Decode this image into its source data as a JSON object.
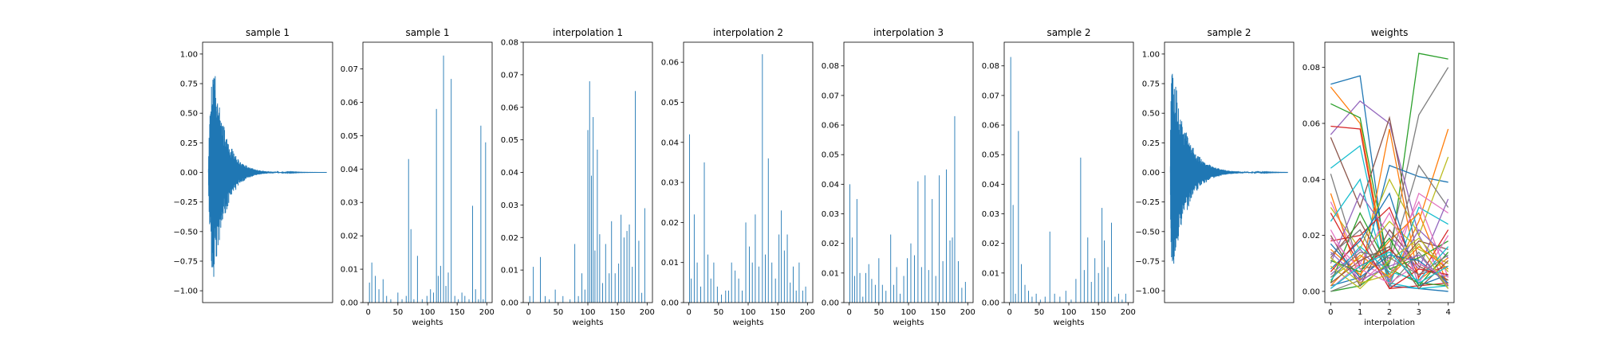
{
  "chart_data": [
    {
      "type": "line",
      "title": "sample 1",
      "xlabel": "",
      "ylabel": "",
      "ylim": [
        -1.1,
        1.1
      ],
      "x_ticks": [],
      "y_ticks": [
        -1.0,
        -0.75,
        -0.5,
        -0.25,
        0.0,
        0.25,
        0.5,
        0.75,
        1.0
      ],
      "y_tick_labels": [
        "−1.00",
        "−0.75",
        "−0.50",
        "−0.25",
        "0.00",
        "0.25",
        "0.50",
        "0.75",
        "1.00"
      ],
      "waveform": {
        "peak": 1.0,
        "onset": 0.04,
        "decay": 0.1,
        "end": 1.0
      },
      "color": "#1f77b4"
    },
    {
      "type": "bar",
      "title": "sample 1",
      "xlabel": "weights",
      "ylabel": "",
      "xlim": [
        -9,
        209
      ],
      "ylim": [
        0,
        0.078
      ],
      "x_ticks": [
        0,
        50,
        100,
        150,
        200
      ],
      "y_ticks": [
        0.0,
        0.01,
        0.02,
        0.03,
        0.04,
        0.05,
        0.06,
        0.07
      ],
      "y_tick_labels": [
        "0.00",
        "0.01",
        "0.02",
        "0.03",
        "0.04",
        "0.05",
        "0.06",
        "0.07"
      ],
      "x": [
        2,
        6,
        12,
        18,
        25,
        31,
        38,
        50,
        57,
        64,
        68,
        72,
        77,
        83,
        91,
        99,
        105,
        110,
        115,
        118,
        122,
        127,
        131,
        135,
        140,
        146,
        152,
        158,
        163,
        170,
        176,
        181,
        186,
        190,
        194,
        198
      ],
      "values": [
        0.006,
        0.012,
        0.008,
        0.004,
        0.007,
        0.002,
        0.001,
        0.003,
        0.001,
        0.002,
        0.043,
        0.022,
        0.001,
        0.014,
        0.001,
        0.002,
        0.004,
        0.003,
        0.058,
        0.008,
        0.011,
        0.074,
        0.005,
        0.009,
        0.067,
        0.002,
        0.001,
        0.003,
        0.002,
        0.001,
        0.029,
        0.004,
        0.001,
        0.053,
        0.001,
        0.048
      ],
      "color": "#1f77b4"
    },
    {
      "type": "bar",
      "title": "interpolation 1",
      "xlabel": "weights",
      "ylabel": "",
      "xlim": [
        -9,
        209
      ],
      "ylim": [
        0,
        0.08
      ],
      "x_ticks": [
        0,
        50,
        100,
        150,
        200
      ],
      "y_ticks": [
        0.0,
        0.01,
        0.02,
        0.03,
        0.04,
        0.05,
        0.06,
        0.07,
        0.08
      ],
      "y_tick_labels": [
        "0.00",
        "0.01",
        "0.02",
        "0.03",
        "0.04",
        "0.05",
        "0.06",
        "0.07",
        "0.08"
      ],
      "x": [
        2,
        8,
        20,
        28,
        35,
        45,
        58,
        70,
        78,
        84,
        90,
        95,
        100,
        103,
        106,
        109,
        112,
        116,
        120,
        125,
        130,
        136,
        140,
        146,
        152,
        156,
        161,
        166,
        170,
        175,
        180,
        186,
        191,
        196
      ],
      "values": [
        0.002,
        0.011,
        0.014,
        0.002,
        0.001,
        0.004,
        0.002,
        0.001,
        0.018,
        0.002,
        0.009,
        0.004,
        0.053,
        0.068,
        0.039,
        0.057,
        0.016,
        0.047,
        0.021,
        0.006,
        0.018,
        0.009,
        0.025,
        0.009,
        0.012,
        0.027,
        0.02,
        0.022,
        0.024,
        0.011,
        0.065,
        0.019,
        0.003,
        0.029
      ],
      "color": "#1f77b4"
    },
    {
      "type": "bar",
      "title": "interpolation 2",
      "xlabel": "weights",
      "ylabel": "",
      "xlim": [
        -9,
        209
      ],
      "ylim": [
        0,
        0.065
      ],
      "x_ticks": [
        0,
        50,
        100,
        150,
        200
      ],
      "y_ticks": [
        0.0,
        0.01,
        0.02,
        0.03,
        0.04,
        0.05,
        0.06
      ],
      "y_tick_labels": [
        "0.00",
        "0.01",
        "0.02",
        "0.03",
        "0.04",
        "0.05",
        "0.06"
      ],
      "x": [
        1,
        4,
        9,
        14,
        20,
        26,
        32,
        37,
        42,
        48,
        55,
        62,
        67,
        72,
        78,
        84,
        90,
        96,
        102,
        107,
        112,
        118,
        124,
        129,
        134,
        140,
        146,
        152,
        156,
        161,
        166,
        171,
        176,
        181,
        186,
        192,
        197
      ],
      "values": [
        0.042,
        0.006,
        0.022,
        0.01,
        0.004,
        0.035,
        0.012,
        0.006,
        0.01,
        0.004,
        0.002,
        0.003,
        0.003,
        0.01,
        0.008,
        0.006,
        0.003,
        0.02,
        0.014,
        0.01,
        0.022,
        0.009,
        0.062,
        0.012,
        0.036,
        0.01,
        0.006,
        0.017,
        0.023,
        0.013,
        0.017,
        0.005,
        0.009,
        0.003,
        0.01,
        0.003,
        0.004
      ],
      "color": "#1f77b4"
    },
    {
      "type": "bar",
      "title": "interpolation 3",
      "xlabel": "weights",
      "ylabel": "",
      "xlim": [
        -9,
        209
      ],
      "ylim": [
        0,
        0.088
      ],
      "x_ticks": [
        0,
        50,
        100,
        150,
        200
      ],
      "y_ticks": [
        0.0,
        0.01,
        0.02,
        0.03,
        0.04,
        0.05,
        0.06,
        0.07,
        0.08
      ],
      "y_tick_labels": [
        "0.00",
        "0.01",
        "0.02",
        "0.03",
        "0.04",
        "0.05",
        "0.06",
        "0.07",
        "0.08"
      ],
      "x": [
        1,
        5,
        9,
        13,
        18,
        23,
        28,
        33,
        38,
        44,
        50,
        56,
        62,
        70,
        75,
        80,
        86,
        92,
        98,
        104,
        110,
        116,
        122,
        128,
        134,
        140,
        146,
        152,
        158,
        164,
        170,
        174,
        178,
        184,
        190,
        196
      ],
      "values": [
        0.04,
        0.022,
        0.009,
        0.035,
        0.01,
        0.002,
        0.01,
        0.013,
        0.008,
        0.006,
        0.015,
        0.006,
        0.004,
        0.023,
        0.006,
        0.012,
        0.003,
        0.009,
        0.015,
        0.02,
        0.016,
        0.041,
        0.012,
        0.043,
        0.011,
        0.035,
        0.009,
        0.043,
        0.014,
        0.045,
        0.021,
        0.022,
        0.063,
        0.014,
        0.005,
        0.007
      ],
      "color": "#1f77b4"
    },
    {
      "type": "bar",
      "title": "sample 2",
      "xlabel": "weights",
      "ylabel": "",
      "xlim": [
        -9,
        209
      ],
      "ylim": [
        0,
        0.088
      ],
      "x_ticks": [
        0,
        50,
        100,
        150,
        200
      ],
      "y_ticks": [
        0.0,
        0.01,
        0.02,
        0.03,
        0.04,
        0.05,
        0.06,
        0.07,
        0.08
      ],
      "y_tick_labels": [
        "0.00",
        "0.01",
        "0.02",
        "0.03",
        "0.04",
        "0.05",
        "0.06",
        "0.07",
        "0.08"
      ],
      "x": [
        2,
        6,
        10,
        15,
        20,
        26,
        32,
        38,
        45,
        52,
        60,
        68,
        76,
        85,
        95,
        104,
        112,
        120,
        126,
        132,
        138,
        144,
        150,
        156,
        160,
        166,
        172,
        178,
        184,
        190,
        196
      ],
      "values": [
        0.083,
        0.033,
        0.003,
        0.058,
        0.013,
        0.006,
        0.004,
        0.002,
        0.003,
        0.001,
        0.002,
        0.024,
        0.003,
        0.002,
        0.004,
        0.001,
        0.008,
        0.049,
        0.011,
        0.022,
        0.007,
        0.015,
        0.01,
        0.032,
        0.021,
        0.012,
        0.027,
        0.002,
        0.003,
        0.001,
        0.003
      ],
      "color": "#1f77b4"
    },
    {
      "type": "line",
      "title": "sample 2",
      "xlabel": "",
      "ylabel": "",
      "ylim": [
        -1.1,
        1.1
      ],
      "x_ticks": [],
      "y_ticks": [
        -1.0,
        -0.75,
        -0.5,
        -0.25,
        0.0,
        0.25,
        0.5,
        0.75,
        1.0
      ],
      "y_tick_labels": [
        "−1.00",
        "−0.75",
        "−0.50",
        "−0.25",
        "0.00",
        "0.25",
        "0.50",
        "0.75",
        "1.00"
      ],
      "waveform": {
        "peak": 1.0,
        "onset": 0.01,
        "decay": 0.12,
        "end": 1.0
      },
      "color": "#1f77b4"
    },
    {
      "type": "line",
      "title": "weights",
      "xlabel": "interpolation",
      "ylabel": "",
      "xlim": [
        -0.2,
        4.2
      ],
      "ylim": [
        -0.004,
        0.089
      ],
      "x_ticks": [
        0,
        1,
        2,
        3,
        4
      ],
      "y_ticks": [
        0.0,
        0.02,
        0.04,
        0.06,
        0.08
      ],
      "y_tick_labels": [
        "0.00",
        "0.02",
        "0.04",
        "0.06",
        "0.08"
      ],
      "x": [
        0,
        1,
        2,
        3,
        4
      ],
      "series": [
        {
          "color": "#1f77b4",
          "values": [
            0.074,
            0.077,
            0.002,
            0.001,
            0.0
          ]
        },
        {
          "color": "#2ca02c",
          "values": [
            0.0,
            0.002,
            0.01,
            0.085,
            0.083
          ]
        },
        {
          "color": "#ff7f0e",
          "values": [
            0.073,
            0.06,
            0.003,
            0.025,
            0.058
          ]
        },
        {
          "color": "#7f7f7f",
          "values": [
            0.0,
            0.004,
            0.015,
            0.063,
            0.08
          ]
        },
        {
          "color": "#9467bd",
          "values": [
            0.056,
            0.068,
            0.06,
            0.02,
            0.002
          ]
        },
        {
          "color": "#d62728",
          "values": [
            0.059,
            0.058,
            0.001,
            0.002,
            0.003
          ]
        },
        {
          "color": "#2ca02c",
          "values": [
            0.067,
            0.062,
            0.008,
            0.003,
            0.002
          ]
        },
        {
          "color": "#17becf",
          "values": [
            0.044,
            0.052,
            0.003,
            0.001,
            0.002
          ]
        },
        {
          "color": "#1f77b4",
          "values": [
            0.002,
            0.005,
            0.045,
            0.041,
            0.039
          ]
        },
        {
          "color": "#bcbd22",
          "values": [
            0.03,
            0.015,
            0.04,
            0.02,
            0.048
          ]
        },
        {
          "color": "#e377c2",
          "values": [
            0.032,
            0.01,
            0.005,
            0.035,
            0.028
          ]
        },
        {
          "color": "#8c564b",
          "values": [
            0.055,
            0.03,
            0.062,
            0.01,
            0.004
          ]
        },
        {
          "color": "#ff7f0e",
          "values": [
            0.035,
            0.004,
            0.058,
            0.004,
            0.012
          ]
        },
        {
          "color": "#7f7f7f",
          "values": [
            0.042,
            0.008,
            0.01,
            0.045,
            0.03
          ]
        },
        {
          "color": "#17becf",
          "values": [
            0.025,
            0.04,
            0.002,
            0.03,
            0.024
          ]
        },
        {
          "color": "#d62728",
          "values": [
            0.018,
            0.02,
            0.03,
            0.005,
            0.022
          ]
        },
        {
          "color": "#9467bd",
          "values": [
            0.01,
            0.035,
            0.02,
            0.008,
            0.033
          ]
        },
        {
          "color": "#bcbd22",
          "values": [
            0.005,
            0.012,
            0.025,
            0.015,
            0.01
          ]
        },
        {
          "color": "#e377c2",
          "values": [
            0.022,
            0.003,
            0.012,
            0.032,
            0.005
          ]
        },
        {
          "color": "#8c564b",
          "values": [
            0.012,
            0.025,
            0.006,
            0.018,
            0.015
          ]
        },
        {
          "color": "#1f77b4",
          "values": [
            0.008,
            0.018,
            0.035,
            0.002,
            0.006
          ]
        },
        {
          "color": "#ff7f0e",
          "values": [
            0.015,
            0.006,
            0.018,
            0.028,
            0.002
          ]
        },
        {
          "color": "#2ca02c",
          "values": [
            0.003,
            0.028,
            0.008,
            0.012,
            0.018
          ]
        },
        {
          "color": "#d62728",
          "values": [
            0.028,
            0.009,
            0.015,
            0.006,
            0.009
          ]
        },
        {
          "color": "#9467bd",
          "values": [
            0.006,
            0.015,
            0.004,
            0.022,
            0.012
          ]
        },
        {
          "color": "#8c564b",
          "values": [
            0.02,
            0.002,
            0.022,
            0.009,
            0.004
          ]
        },
        {
          "color": "#e377c2",
          "values": [
            0.001,
            0.01,
            0.028,
            0.003,
            0.02
          ]
        },
        {
          "color": "#7f7f7f",
          "values": [
            0.013,
            0.022,
            0.002,
            0.014,
            0.001
          ]
        },
        {
          "color": "#bcbd22",
          "values": [
            0.009,
            0.001,
            0.011,
            0.019,
            0.007
          ]
        },
        {
          "color": "#17becf",
          "values": [
            0.004,
            0.016,
            0.007,
            0.004,
            0.016
          ]
        },
        {
          "color": "#1f77b4",
          "values": [
            0.017,
            0.005,
            0.013,
            0.011,
            0.003
          ]
        },
        {
          "color": "#ff7f0e",
          "values": [
            0.002,
            0.013,
            0.005,
            0.016,
            0.008
          ]
        },
        {
          "color": "#2ca02c",
          "values": [
            0.011,
            0.007,
            0.019,
            0.002,
            0.014
          ]
        },
        {
          "color": "#d62728",
          "values": [
            0.007,
            0.019,
            0.001,
            0.008,
            0.006
          ]
        },
        {
          "color": "#9467bd",
          "values": [
            0.014,
            0.004,
            0.009,
            0.013,
            0.002
          ]
        },
        {
          "color": "#8c564b",
          "values": [
            0.003,
            0.011,
            0.016,
            0.001,
            0.011
          ]
        },
        {
          "color": "#e377c2",
          "values": [
            0.019,
            0.008,
            0.003,
            0.01,
            0.005
          ]
        },
        {
          "color": "#7f7f7f",
          "values": [
            0.005,
            0.014,
            0.012,
            0.006,
            0.013
          ]
        },
        {
          "color": "#bcbd22",
          "values": [
            0.012,
            0.003,
            0.006,
            0.017,
            0.001
          ]
        },
        {
          "color": "#17becf",
          "values": [
            0.001,
            0.009,
            0.014,
            0.003,
            0.009
          ]
        }
      ]
    }
  ]
}
